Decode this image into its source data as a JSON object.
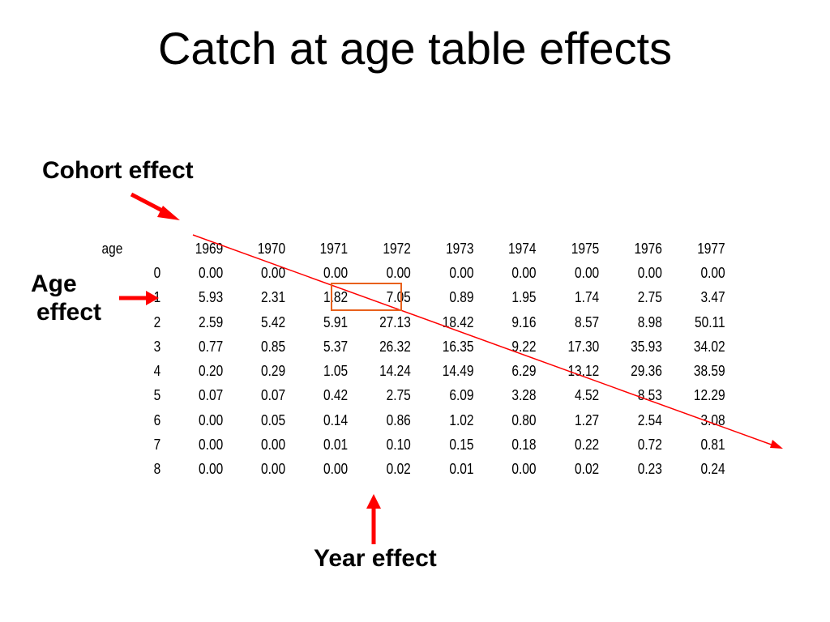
{
  "slide": {
    "title": "Catch at age table effects",
    "labels": {
      "cohort": "Cohort effect",
      "age_line1": "Age",
      "age_line2": "effect",
      "year": "Year effect"
    },
    "colors": {
      "arrow": "#ff0000",
      "highlight_box": "#e8601c",
      "cohort_line": "#ff0000"
    },
    "highlighted_cell": {
      "age": "1",
      "year": "1971",
      "value": "1.82"
    }
  },
  "table": {
    "header_label": "age",
    "years": [
      "1969",
      "1970",
      "1971",
      "1972",
      "1973",
      "1974",
      "1975",
      "1976",
      "1977"
    ],
    "rows": [
      {
        "age": "0",
        "values": [
          "0.00",
          "0.00",
          "0.00",
          "0.00",
          "0.00",
          "0.00",
          "0.00",
          "0.00",
          "0.00"
        ]
      },
      {
        "age": "1",
        "values": [
          "5.93",
          "2.31",
          "1.82",
          "7.05",
          "0.89",
          "1.95",
          "1.74",
          "2.75",
          "3.47"
        ]
      },
      {
        "age": "2",
        "values": [
          "2.59",
          "5.42",
          "5.91",
          "27.13",
          "18.42",
          "9.16",
          "8.57",
          "8.98",
          "50.11"
        ]
      },
      {
        "age": "3",
        "values": [
          "0.77",
          "0.85",
          "5.37",
          "26.32",
          "16.35",
          "9.22",
          "17.30",
          "35.93",
          "34.02"
        ]
      },
      {
        "age": "4",
        "values": [
          "0.20",
          "0.29",
          "1.05",
          "14.24",
          "14.49",
          "6.29",
          "13.12",
          "29.36",
          "38.59"
        ]
      },
      {
        "age": "5",
        "values": [
          "0.07",
          "0.07",
          "0.42",
          "2.75",
          "6.09",
          "3.28",
          "4.52",
          "8.53",
          "12.29"
        ]
      },
      {
        "age": "6",
        "values": [
          "0.00",
          "0.05",
          "0.14",
          "0.86",
          "1.02",
          "0.80",
          "1.27",
          "2.54",
          "3.08"
        ]
      },
      {
        "age": "7",
        "values": [
          "0.00",
          "0.00",
          "0.01",
          "0.10",
          "0.15",
          "0.18",
          "0.22",
          "0.72",
          "0.81"
        ]
      },
      {
        "age": "8",
        "values": [
          "0.00",
          "0.00",
          "0.00",
          "0.02",
          "0.01",
          "0.00",
          "0.02",
          "0.23",
          "0.24"
        ]
      }
    ]
  }
}
